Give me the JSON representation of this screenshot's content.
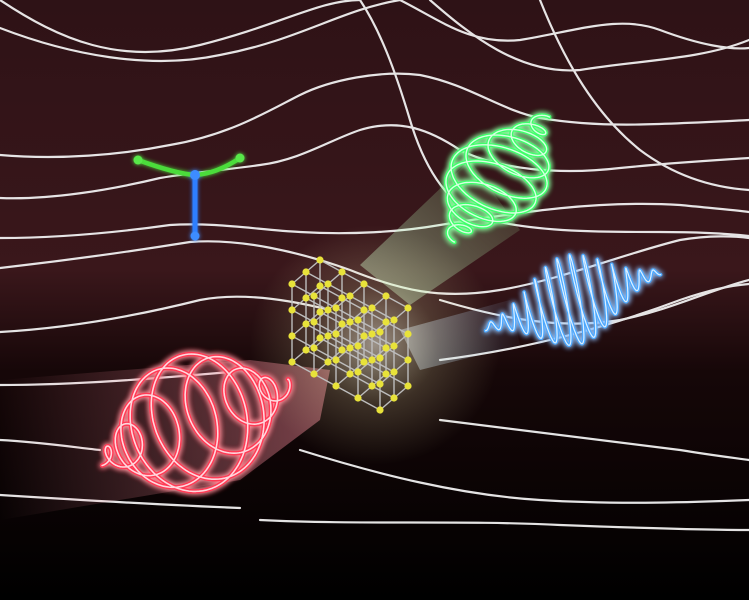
{
  "scene": {
    "background_top": "#3a1418",
    "background_bottom": "#000000",
    "band_line_color": "#f2f2f2",
    "crystal_atom_color": "#e8e23a",
    "crystal_bond_color": "#bdbdbd",
    "glow_color": "#fffbe0",
    "incoming_pulse_color": "#ff3a55",
    "second_harmonic_pulse_color": "#4aa8ff",
    "third_harmonic_pulse_color": "#3cff6a",
    "transition_green_color": "#4cdc3a",
    "transition_blue_color": "#2f7fff",
    "icons": [
      "red-spiral-pulse-icon",
      "blue-wave-pulse-icon",
      "green-spiral-pulse-icon",
      "crystal-lattice-icon",
      "band-transition-icon"
    ]
  }
}
